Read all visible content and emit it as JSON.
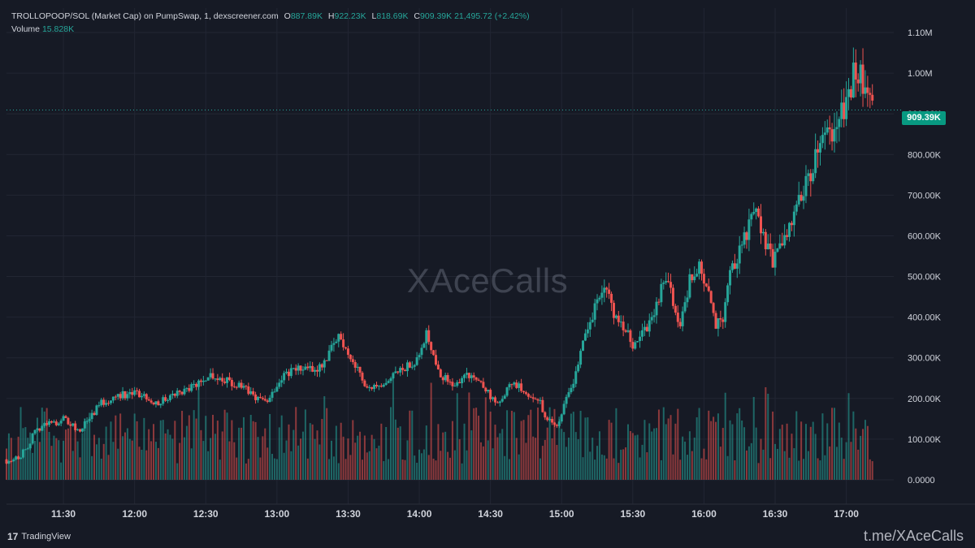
{
  "legend": {
    "symbol": "TROLLOPOOP/SOL (Market Cap) on PumpSwap, 1, dexscreener.com",
    "o_key": "O",
    "o_val": "887.89K",
    "h_key": "H",
    "h_val": "922.23K",
    "l_key": "L",
    "l_val": "818.69K",
    "c_key": "C",
    "c_val": "909.39K",
    "change": "21,495.72 (+2.42%)",
    "volume_label": "Volume",
    "volume_val": "15.828K"
  },
  "watermark": "XAceCalls",
  "current_price_label": "909.39K",
  "branding": {
    "tv_text": "TradingView",
    "footer_link": "t.me/XAceCalls"
  },
  "colors": {
    "up": "#26a69a",
    "down": "#ef5350",
    "background": "#161a25",
    "grid": "#222633"
  },
  "chart_data": {
    "type": "candlestick",
    "y_ticks": [
      "1.10M",
      "1.00M",
      "900.00K",
      "800.00K",
      "700.00K",
      "600.00K",
      "500.00K",
      "400.00K",
      "300.00K",
      "200.00K",
      "100.00K",
      "0.0000"
    ],
    "y_tick_values": [
      1100,
      1000,
      900,
      800,
      700,
      600,
      500,
      400,
      300,
      200,
      100,
      0
    ],
    "x_ticks": [
      "11:30",
      "12:00",
      "12:30",
      "13:00",
      "13:30",
      "14:00",
      "14:30",
      "15:00",
      "15:30",
      "16:00",
      "16:30",
      "17:00"
    ],
    "x_tick_minutes": [
      690,
      720,
      750,
      780,
      810,
      840,
      870,
      900,
      930,
      960,
      990,
      1020
    ],
    "x_range_minutes": [
      666,
      1040
    ],
    "y_range_k": [
      -60,
      1160
    ],
    "last_price_k": 909.39,
    "close_series_k": [
      [
        666,
        50
      ],
      [
        672,
        60
      ],
      [
        680,
        130
      ],
      [
        690,
        150
      ],
      [
        697,
        120
      ],
      [
        705,
        185
      ],
      [
        713,
        210
      ],
      [
        722,
        210
      ],
      [
        730,
        190
      ],
      [
        737,
        210
      ],
      [
        745,
        230
      ],
      [
        752,
        260
      ],
      [
        760,
        240
      ],
      [
        767,
        220
      ],
      [
        775,
        190
      ],
      [
        783,
        260
      ],
      [
        790,
        275
      ],
      [
        796,
        270
      ],
      [
        800,
        290
      ],
      [
        806,
        355
      ],
      [
        813,
        280
      ],
      [
        818,
        230
      ],
      [
        824,
        220
      ],
      [
        830,
        260
      ],
      [
        838,
        290
      ],
      [
        843,
        360
      ],
      [
        849,
        260
      ],
      [
        854,
        230
      ],
      [
        860,
        260
      ],
      [
        866,
        240
      ],
      [
        873,
        180
      ],
      [
        879,
        240
      ],
      [
        884,
        220
      ],
      [
        890,
        200
      ],
      [
        894,
        145
      ],
      [
        898,
        130
      ],
      [
        902,
        200
      ],
      [
        906,
        260
      ],
      [
        909,
        350
      ],
      [
        914,
        420
      ],
      [
        918,
        480
      ],
      [
        922,
        410
      ],
      [
        926,
        380
      ],
      [
        930,
        330
      ],
      [
        934,
        360
      ],
      [
        939,
        400
      ],
      [
        943,
        500
      ],
      [
        946,
        460
      ],
      [
        950,
        380
      ],
      [
        954,
        490
      ],
      [
        958,
        520
      ],
      [
        962,
        450
      ],
      [
        965,
        380
      ],
      [
        968,
        400
      ],
      [
        971,
        500
      ],
      [
        975,
        560
      ],
      [
        979,
        620
      ],
      [
        982,
        660
      ],
      [
        985,
        590
      ],
      [
        989,
        540
      ],
      [
        993,
        570
      ],
      [
        997,
        630
      ],
      [
        1001,
        700
      ],
      [
        1005,
        760
      ],
      [
        1009,
        820
      ],
      [
        1013,
        850
      ],
      [
        1017,
        880
      ],
      [
        1021,
        950
      ],
      [
        1024,
        1020
      ],
      [
        1028,
        970
      ],
      [
        1031,
        909
      ]
    ]
  }
}
